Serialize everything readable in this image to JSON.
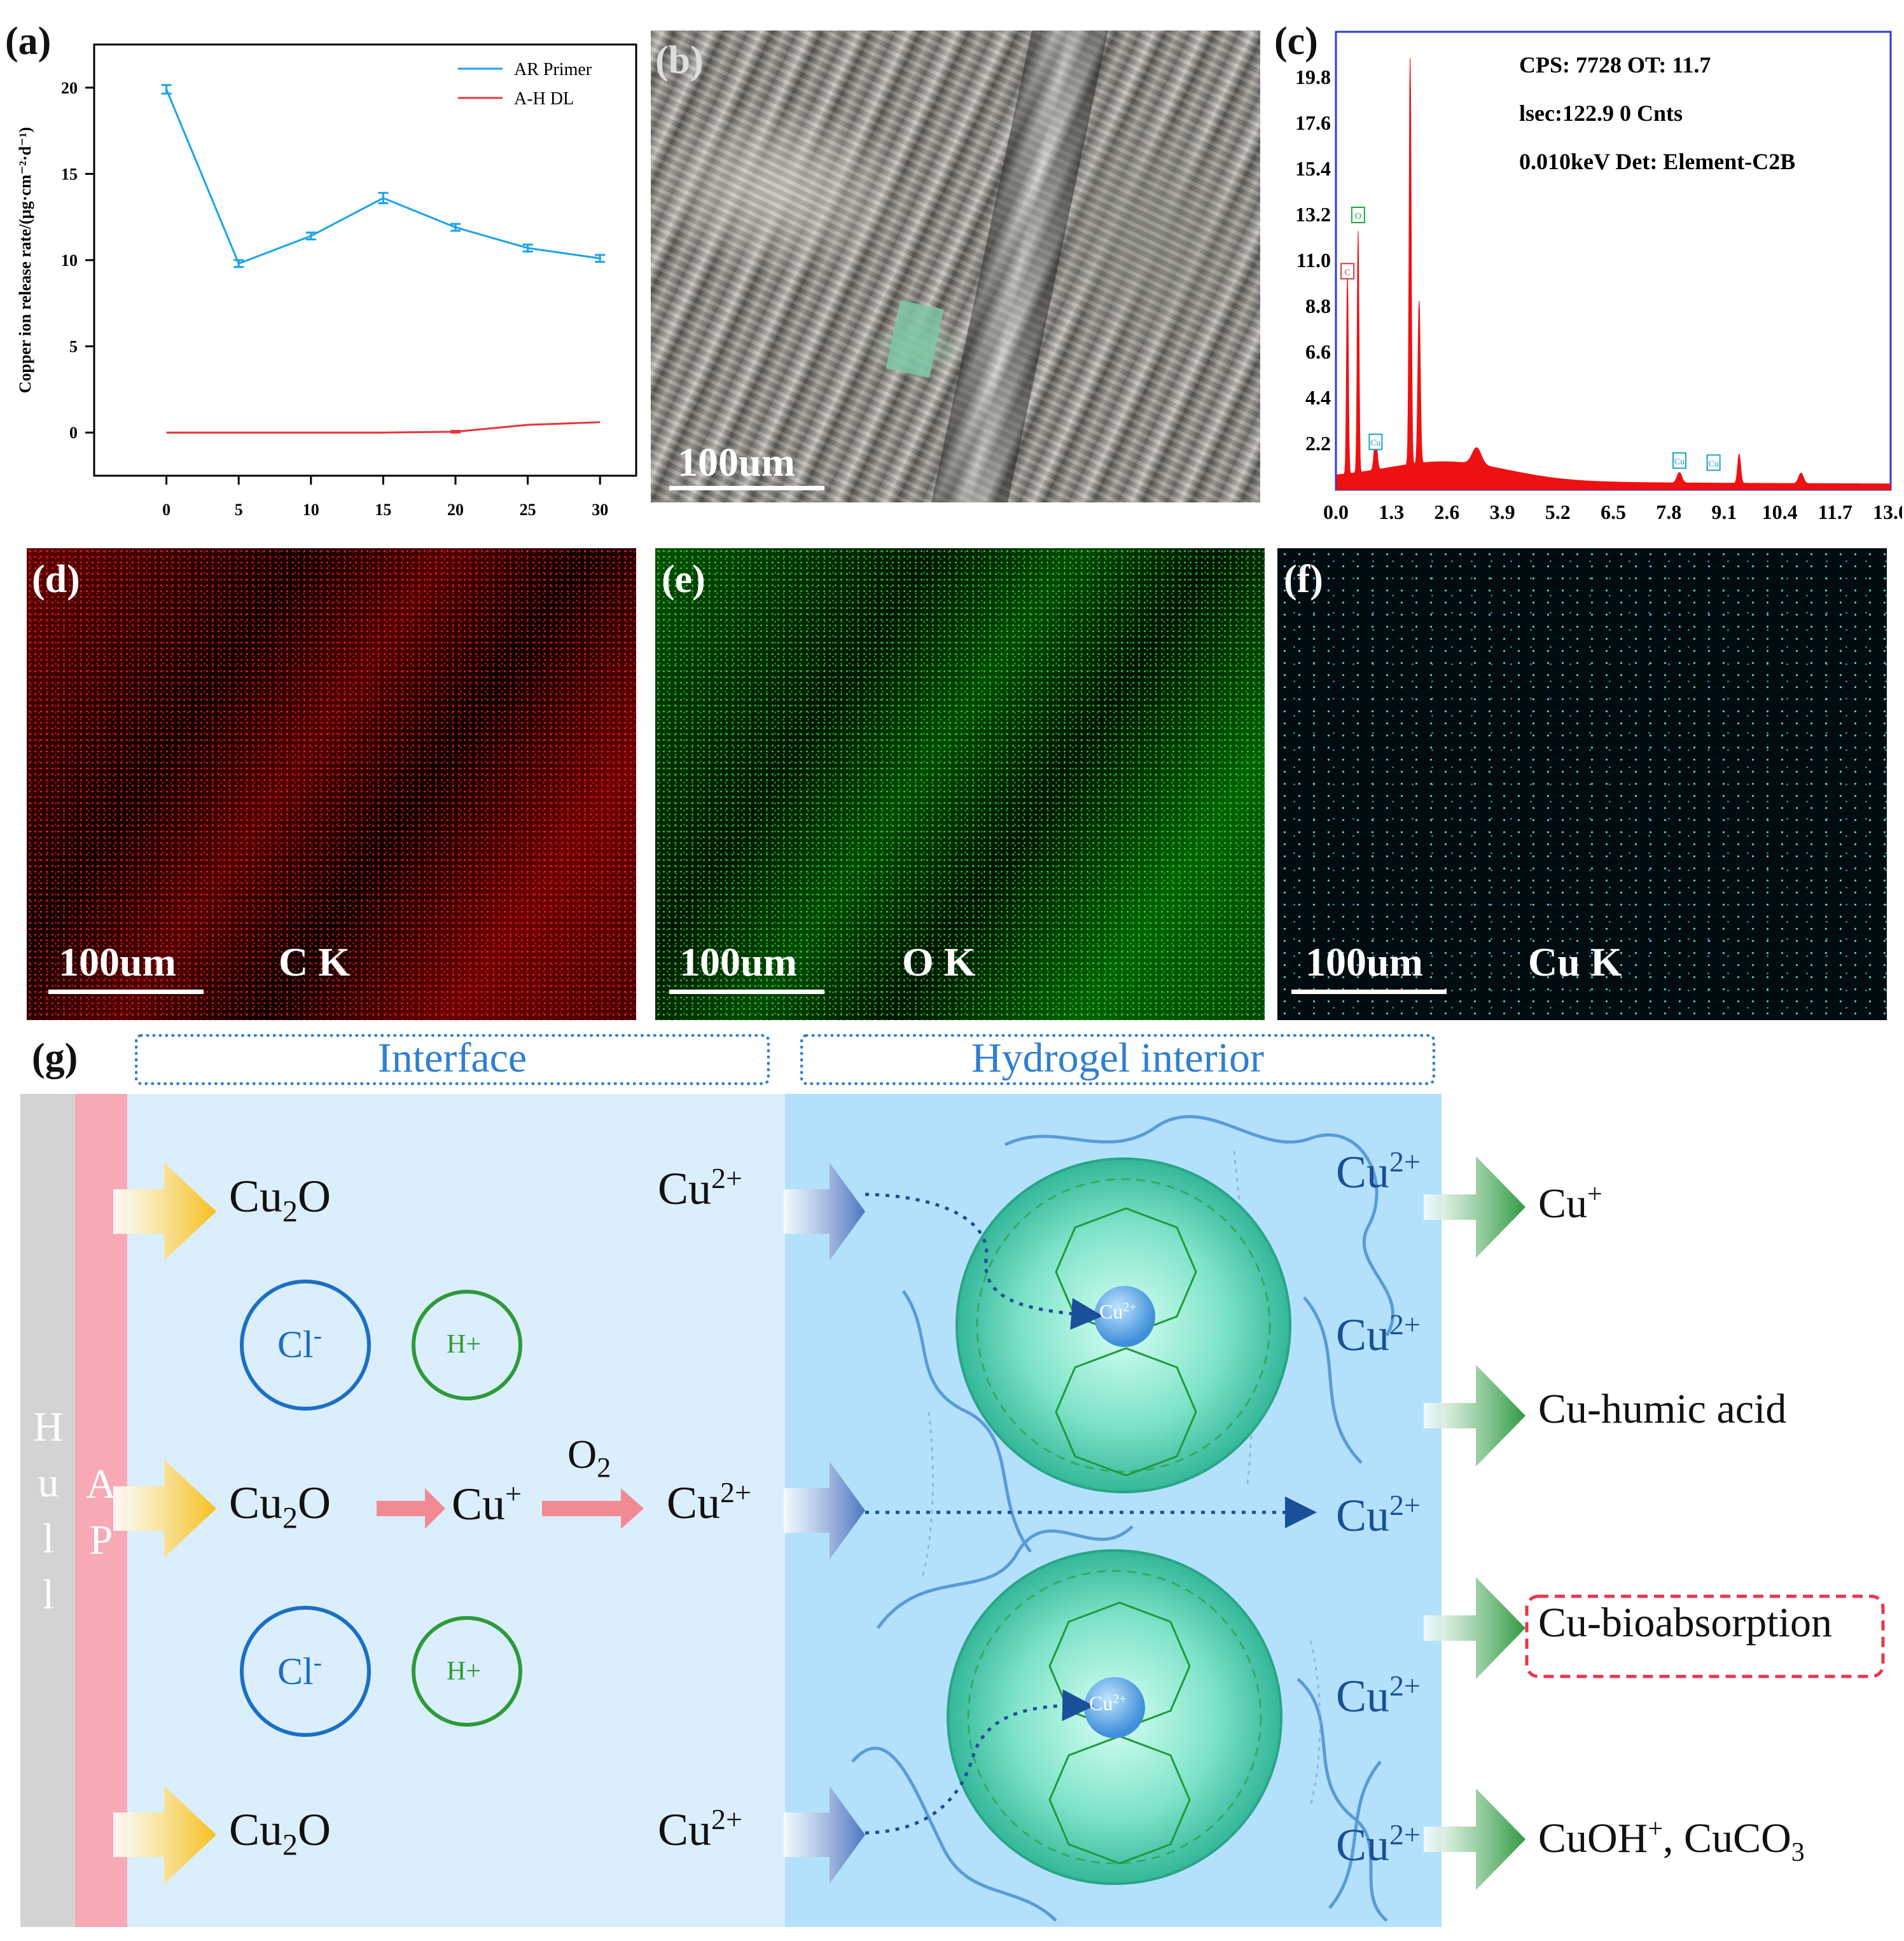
{
  "panels": {
    "a": "(a)",
    "b": "(b)",
    "c": "(c)",
    "d": "(d)",
    "e": "(e)",
    "f": "(f)",
    "g": "(g)"
  },
  "chart_data": {
    "type": "line",
    "title": "",
    "xlabel": "",
    "ylabel": "Copper ion release rate/(μg·cm⁻²·d⁻¹)",
    "x": [
      0,
      5,
      10,
      15,
      20,
      25,
      30
    ],
    "xticks": [
      "0",
      "5",
      "10",
      "15",
      "20",
      "25",
      "30"
    ],
    "yticks": [
      "0",
      "5",
      "10",
      "15",
      "20"
    ],
    "xlim": [
      -5,
      32.5
    ],
    "ylim": [
      -2.5,
      22.5
    ],
    "legend_position": "top-right",
    "series": [
      {
        "name": "AR Primer",
        "color": "#1aa3e8",
        "values": [
          19.9,
          9.8,
          11.4,
          13.6,
          11.9,
          10.7,
          10.1
        ],
        "errors": [
          0.25,
          0.2,
          0.2,
          0.3,
          0.2,
          0.2,
          0.2
        ]
      },
      {
        "name": "A-H DL",
        "color": "#e8353b",
        "values": [
          0.0,
          0.0,
          0.0,
          0.0,
          0.05,
          0.45,
          0.6
        ],
        "errors": [
          0,
          0,
          0,
          0,
          0.05,
          0,
          0
        ]
      }
    ]
  },
  "scale_bar": "100um",
  "eds": {
    "info_lines": [
      "CPS: 7728  OT: 11.7",
      "lsec:122.9  0 Cnts",
      "0.010keV  Det: Element-C2B"
    ],
    "yticks": [
      "19.8",
      "17.6",
      "15.4",
      "13.2",
      "11.0",
      "8.8",
      "6.6",
      "4.4",
      "2.2"
    ],
    "xticks": [
      "0.0",
      "1.3",
      "2.6",
      "3.9",
      "5.2",
      "6.5",
      "7.8",
      "9.1",
      "10.4",
      "11.7",
      "13.0"
    ],
    "peak_markers": [
      "O",
      "C",
      "Cu",
      "Cu",
      "Cu"
    ],
    "accent": "#ee1111"
  },
  "maps": {
    "d_label": "C K",
    "e_label": "O K",
    "f_label": "Cu K"
  },
  "diagram": {
    "interface_header": "Interface",
    "interior_header": "Hydrogel interior",
    "hull": [
      "H",
      "u",
      "l",
      "l"
    ],
    "ap": [
      "A",
      "P"
    ],
    "cu2o": "Cu",
    "cu2o_sub": "2",
    "cu2o_tail": "O",
    "cu_plus": "Cu",
    "cu_plus_sup": "+",
    "o2": "O",
    "o2_sub": "2",
    "cu2": "Cu",
    "cu2_sup": "2+",
    "cl": "Cl",
    "cl_sup": "-",
    "h": "H+",
    "bead_ion": "Cu",
    "bead_ion_sup": "2+",
    "products": {
      "p1": "Cu",
      "p1_sup": "+",
      "p2": "Cu-humic acid",
      "p3": "Cu-bioabsorption",
      "p4_a": "CuOH",
      "p4_sup": "+",
      "p4_b": ", CuCO",
      "p4_sub": "3"
    },
    "colors": {
      "hull": "#d3d3d3",
      "ap": "#f7a9b6",
      "interface": "#dbeefb",
      "interior": "#b3e1fb",
      "arrow_yellow": "#f7c323",
      "arrow_blue": "#5e86c8",
      "arrow_green": "#3aa64a",
      "bead": "#5fd6bb",
      "ion_blue": "#1c6fc4",
      "ion_green": "#2e9a3a"
    }
  }
}
